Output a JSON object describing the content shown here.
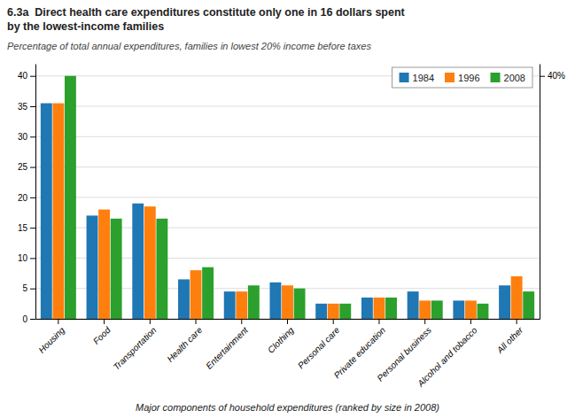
{
  "chart_data": {
    "type": "bar",
    "title": "6.3a  Direct health care expenditures constitute only one in 16 dollars spent\nby the lowest-income families",
    "subtitle": "Percentage of total annual expenditures, families in lowest 20% income before taxes",
    "x_label": "Major components of household expenditures (ranked by size in 2008)",
    "categories": [
      "Housing",
      "Food",
      "Transportation",
      "Health care",
      "Entertainment",
      "Clothing",
      "Personal care",
      "Private education",
      "Personal business",
      "Alcohol and tobacco",
      "All other"
    ],
    "series": [
      {
        "name": "1984",
        "values": [
          35.5,
          17.0,
          19.0,
          6.5,
          4.5,
          6.0,
          2.5,
          3.5,
          4.5,
          3.0,
          5.5
        ]
      },
      {
        "name": "1996",
        "values": [
          35.5,
          18.0,
          18.5,
          8.0,
          4.5,
          5.5,
          2.5,
          3.5,
          3.0,
          3.0,
          7.0
        ]
      },
      {
        "name": "2008",
        "values": [
          40.0,
          16.5,
          16.5,
          8.5,
          5.5,
          5.0,
          2.5,
          3.5,
          3.0,
          2.5,
          4.5
        ]
      }
    ],
    "ylim": [
      0,
      42
    ],
    "yticks": [
      0,
      5,
      10,
      15,
      20,
      25,
      30,
      35,
      40
    ],
    "y2lim": [
      0,
      42
    ],
    "y2ticks": [
      {
        "value": 40,
        "label": "40%"
      }
    ],
    "grid": true,
    "legend": "upper right"
  }
}
